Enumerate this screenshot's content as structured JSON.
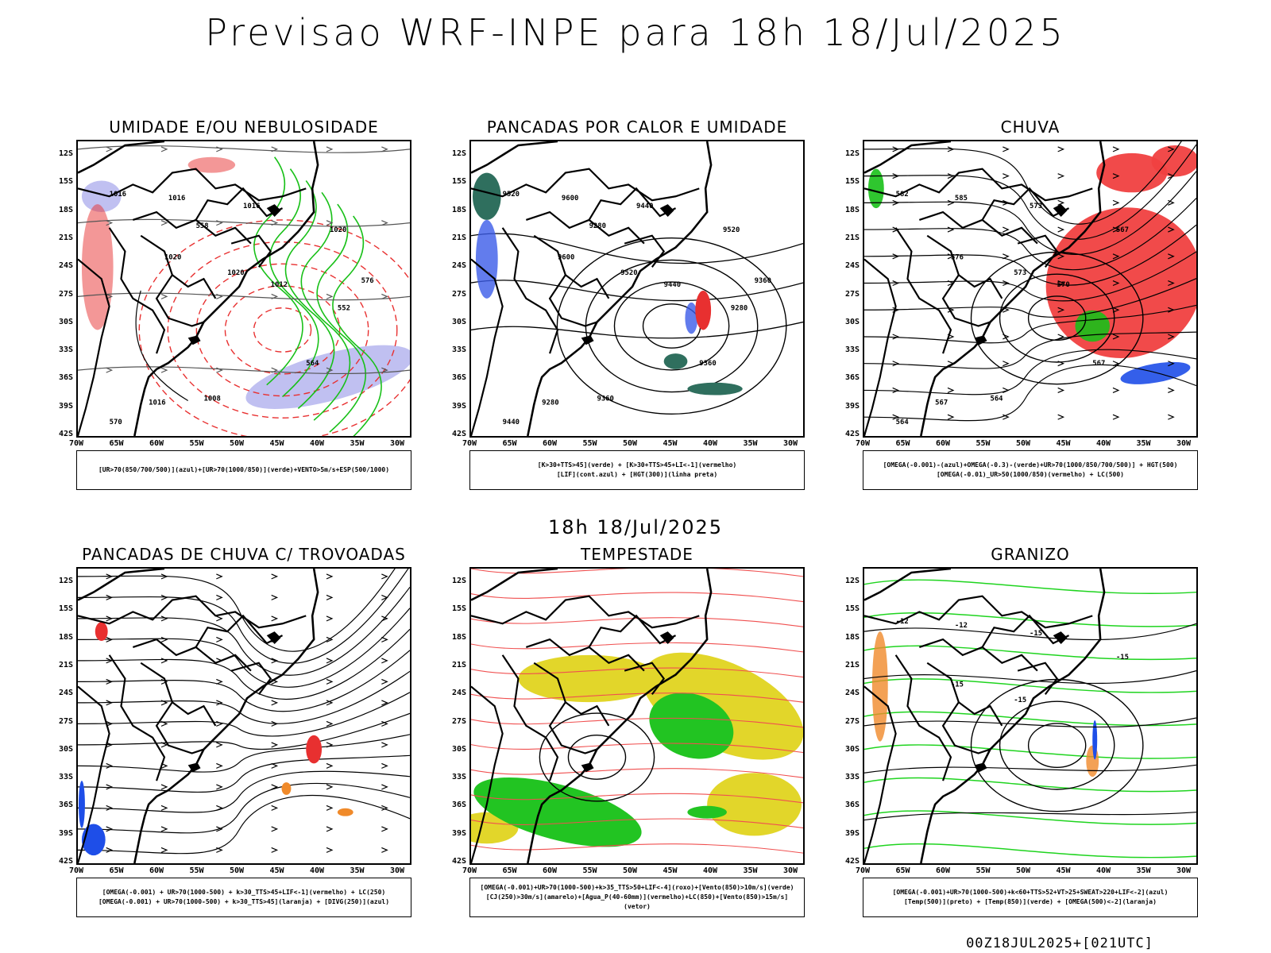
{
  "page_title": "Previsao WRF-INPE  para 18h 18/Jul/2025",
  "middle_label": "18h 18/Jul/2025",
  "footer": "00Z18JUL2025+[021UTC]",
  "lat_labels": [
    "12S",
    "15S",
    "18S",
    "21S",
    "24S",
    "27S",
    "30S",
    "33S",
    "36S",
    "39S",
    "42S"
  ],
  "lon_labels": [
    "70W",
    "65W",
    "60W",
    "55W",
    "50W",
    "45W",
    "40W",
    "35W",
    "30W"
  ],
  "panels": [
    {
      "title": "UMIDADE E/OU NEBULOSIDADE",
      "legend_lines": [
        "[UR>70(850/700/500)](azul)+[UR>70(1000/850)](verde)+VENTO>5m/s+ESP(500/1000)"
      ],
      "contour_labels": [
        "1016",
        "1016",
        "1016",
        "1020",
        "1020",
        "1020",
        "1012",
        "1016",
        "1008",
        "570",
        "564",
        "558",
        "552",
        "576"
      ]
    },
    {
      "title": "PANCADAS POR CALOR E UMIDADE",
      "legend_lines": [
        "[K>30+TTS>45](verde) + [K>30+TTS>45+LI<-1](vermelho)",
        "[LIF](cont.azul) + [HGT(300)](linha preta)"
      ],
      "contour_labels": [
        "9520",
        "9600",
        "9440",
        "9520",
        "9600",
        "9520",
        "9440",
        "9280",
        "9360",
        "9440",
        "9360",
        "9280",
        "9280",
        "9360"
      ]
    },
    {
      "title": "CHUVA",
      "legend_lines": [
        "[OMEGA(-0.001)-(azul)+OMEGA(-0.3)-(verde)+UR>70(1000/850/700/500)] + HGT(500)",
        "[OMEGA(-0.01)_UR>50(1000/850)(vermelho) + LC(500)"
      ],
      "contour_labels": [
        "582",
        "585",
        "573",
        "567",
        "576",
        "573",
        "570",
        "567",
        "564",
        "564",
        "567"
      ]
    },
    {
      "title": "PANCADAS DE CHUVA C/ TROVOADAS",
      "legend_lines": [
        "[OMEGA(-0.001) + UR>70(1000-500) + k>30_TTS>45+LIF<-1](vermelho) + LC(250)",
        "[OMEGA(-0.001) + UR>70(1000-500) + k>30_TTS>45](laranja) + [DIVG(250)](azul)"
      ],
      "contour_labels": []
    },
    {
      "title": "TEMPESTADE",
      "legend_lines": [
        "[OMEGA(-0.001)+UR>70(1000-500)+k>35_TTS>50+LIF<-4](roxo)+[Vento(850)>10m/s](verde)",
        "[CJ(250)>30m/s](amarelo)+[Agua_P(40-60mm)](vermelho)+LC(850)+[Vento(850)>15m/s](vetor)"
      ],
      "contour_labels": []
    },
    {
      "title": "GRANIZO",
      "legend_lines": [
        "[OMEGA(-0.001)+UR>70(1000-500)+k<60+TTS>52+VT>25+SWEAT>220+LIF<-2](azul)",
        "[Temp(500)](preto) + [Temp(850)](verde) + [OMEGA(500)<-2](laranja)"
      ],
      "contour_labels": [
        "-12",
        "-12",
        "-15",
        "-15",
        "-15",
        "-15"
      ]
    }
  ]
}
